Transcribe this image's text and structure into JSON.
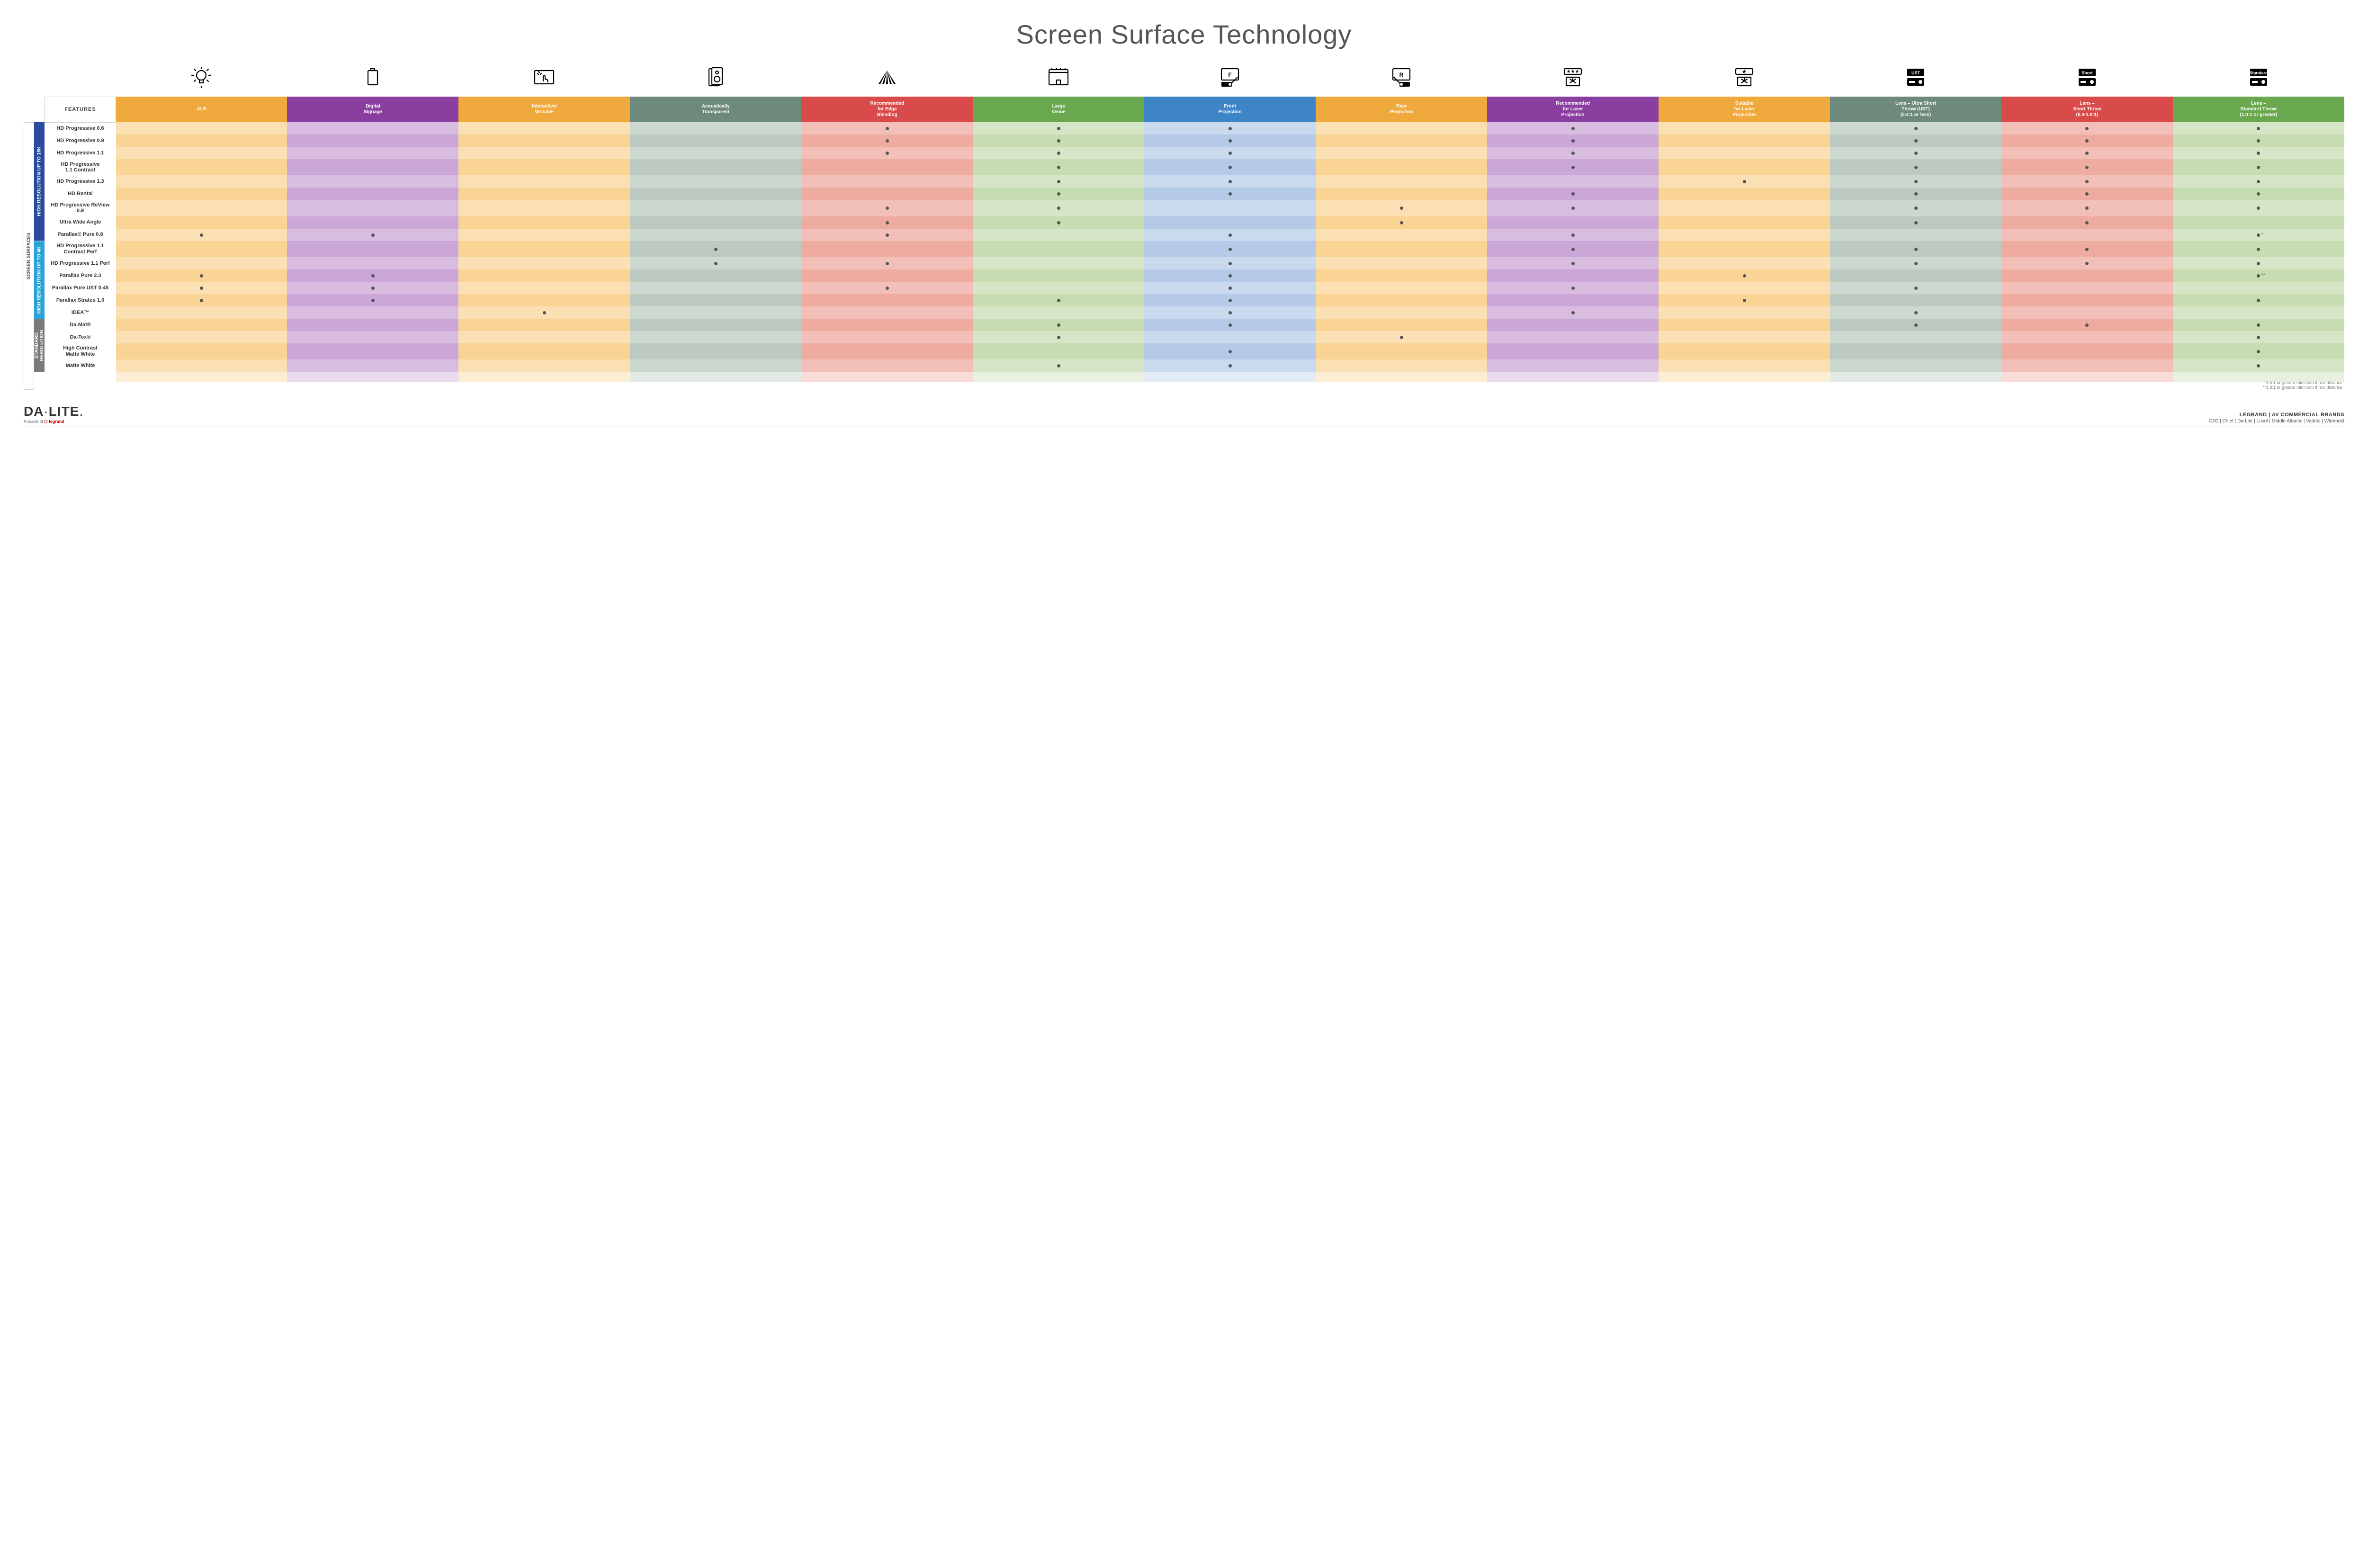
{
  "title": "Screen Surface Technology",
  "dot_color": "#555555",
  "colors": {
    "group_16k": "#2a4b9b",
    "group_4k": "#2aa3d8",
    "group_std": "#7a7a7a"
  },
  "columns": [
    {
      "key": "alr",
      "label": "ALR",
      "hdr": "#f0a93c",
      "shades": [
        "#fbe0b3",
        "#f9d494"
      ]
    },
    {
      "key": "signage",
      "label": "Digital\nSignage",
      "hdr": "#8a3fa0",
      "shades": [
        "#d8bde0",
        "#caa7d6"
      ]
    },
    {
      "key": "writable",
      "label": "Interactive/\nWritable",
      "hdr": "#f0a93c",
      "shades": [
        "#fbe0b3",
        "#f9d494"
      ]
    },
    {
      "key": "acoustic",
      "label": "Acoustically\nTransparent",
      "hdr": "#6e8a7d",
      "shades": [
        "#cdd8d1",
        "#bccac1"
      ]
    },
    {
      "key": "edge",
      "label": "Recommended\nfor Edge\nBlending",
      "hdr": "#d94b4b",
      "shades": [
        "#f2c0b8",
        "#eeab9f"
      ]
    },
    {
      "key": "venue",
      "label": "Large\nVenue",
      "hdr": "#6aa84f",
      "shades": [
        "#d6e5c6",
        "#c6dcb1"
      ]
    },
    {
      "key": "front",
      "label": "Front\nProjection",
      "hdr": "#3d85c6",
      "shades": [
        "#c9d9ee",
        "#b4cae7"
      ]
    },
    {
      "key": "rear",
      "label": "Rear\nProjection",
      "hdr": "#f0a93c",
      "shades": [
        "#fbe0b3",
        "#f9d494"
      ]
    },
    {
      "key": "recLaser",
      "label": "Recommended\nfor Laser\nProjection",
      "hdr": "#8a3fa0",
      "shades": [
        "#d8bde0",
        "#caa7d6"
      ]
    },
    {
      "key": "suitLaser",
      "label": "Suitable\nfor Laser\nProjection",
      "hdr": "#f0a93c",
      "shades": [
        "#fbe0b3",
        "#f9d494"
      ]
    },
    {
      "key": "ust",
      "label": "Lens – Ultra Short\nThrow (UST)\n(0.4:1 or less)",
      "hdr": "#6e8a7d",
      "shades": [
        "#cdd8d1",
        "#bccac1"
      ]
    },
    {
      "key": "short",
      "label": "Lens –\nShort Throw\n(0.4-1.0:1)",
      "hdr": "#d94b4b",
      "shades": [
        "#f2c0b8",
        "#eeab9f"
      ]
    },
    {
      "key": "std",
      "label": "Lens –\nStandard Throw\n(1.0:1 or greater)",
      "hdr": "#6aa84f",
      "shades": [
        "#d6e5c6",
        "#c6dcb1"
      ]
    }
  ],
  "icons": [
    "bulb",
    "signage",
    "touch",
    "speaker",
    "angle",
    "venue",
    "front",
    "rear",
    "laser-rec",
    "laser-suit",
    "proj-ust",
    "proj-short",
    "proj-std"
  ],
  "groups": [
    {
      "key": "g16k",
      "label": "HIGH RESOLUTION UP TO 16K",
      "color": "#2a4b9b"
    },
    {
      "key": "g4k",
      "label": "HIGH RESOLUTION UP TO 4K",
      "color": "#2aa3d8"
    },
    {
      "key": "gstd",
      "label": "STANDARD\nRESOLUTION",
      "color": "#7a7a7a"
    }
  ],
  "side_label": "SCREEN SURFACES",
  "features_label": "FEATURES",
  "rows": [
    {
      "g": "g16k",
      "name": "HD Progressive 0.6",
      "cells": {
        "edge": 1,
        "venue": 1,
        "front": 1,
        "recLaser": 1,
        "ust": 1,
        "short": 1,
        "std": 1
      }
    },
    {
      "g": "g16k",
      "name": "HD Progressive 0.9",
      "cells": {
        "edge": 1,
        "venue": 1,
        "front": 1,
        "recLaser": 1,
        "ust": 1,
        "short": 1,
        "std": 1
      }
    },
    {
      "g": "g16k",
      "name": "HD Progressive 1.1",
      "cells": {
        "edge": 1,
        "venue": 1,
        "front": 1,
        "recLaser": 1,
        "ust": 1,
        "short": 1,
        "std": 1
      }
    },
    {
      "g": "g16k",
      "name": "HD Progressive\n1.1 Contrast",
      "cells": {
        "venue": 1,
        "front": 1,
        "recLaser": 1,
        "ust": 1,
        "short": 1,
        "std": 1
      }
    },
    {
      "g": "g16k",
      "name": "HD Progressive 1.3",
      "cells": {
        "venue": 1,
        "front": 1,
        "suitLaser": 1,
        "ust": 1,
        "short": 1,
        "std": 1
      }
    },
    {
      "g": "g16k",
      "name": "HD Rental",
      "cells": {
        "venue": 1,
        "front": 1,
        "recLaser": 1,
        "ust": 1,
        "short": 1,
        "std": 1
      }
    },
    {
      "g": "g16k",
      "name": "HD Progressive ReView 0.9",
      "cells": {
        "edge": 1,
        "venue": 1,
        "rear": 1,
        "recLaser": 1,
        "ust": 1,
        "short": 1,
        "std": 1
      }
    },
    {
      "g": "g16k",
      "name": "Ultra Wide Angle",
      "cells": {
        "edge": 1,
        "venue": 1,
        "rear": 1,
        "ust": 1,
        "short": 1
      }
    },
    {
      "g": "g16k",
      "name": "Parallax® Pure 0.8",
      "cells": {
        "alr": 1,
        "signage": 1,
        "edge": 1,
        "front": 1,
        "recLaser": 1,
        "std": "*"
      }
    },
    {
      "g": "g4k",
      "name": "HD Progressive 1.1\nContrast Perf",
      "cells": {
        "acoustic": 1,
        "front": 1,
        "recLaser": 1,
        "ust": 1,
        "short": 1,
        "std": 1
      }
    },
    {
      "g": "g4k",
      "name": "HD Progressive 1.1 Perf",
      "cells": {
        "acoustic": 1,
        "edge": 1,
        "front": 1,
        "recLaser": 1,
        "ust": 1,
        "short": 1,
        "std": 1
      }
    },
    {
      "g": "g4k",
      "name": "Parallax Pure 2.3",
      "cells": {
        "alr": 1,
        "signage": 1,
        "front": 1,
        "suitLaser": 1,
        "std": "**"
      }
    },
    {
      "g": "g4k",
      "name": "Parallax Pure UST 0.45",
      "cells": {
        "alr": 1,
        "signage": 1,
        "edge": 1,
        "front": 1,
        "recLaser": 1,
        "ust": 1
      }
    },
    {
      "g": "g4k",
      "name": "Parallax Stratos 1.0",
      "cells": {
        "alr": 1,
        "signage": 1,
        "venue": 1,
        "front": 1,
        "suitLaser": 1,
        "std": 1
      }
    },
    {
      "g": "g4k",
      "name": "IDEA™",
      "cells": {
        "writable": 1,
        "front": 1,
        "recLaser": 1,
        "ust": 1
      }
    },
    {
      "g": "gstd",
      "name": "Da-Mat®",
      "cells": {
        "venue": 1,
        "front": 1,
        "ust": 1,
        "short": 1,
        "std": 1
      }
    },
    {
      "g": "gstd",
      "name": "Da-Tex®",
      "cells": {
        "venue": 1,
        "rear": 1,
        "std": 1
      }
    },
    {
      "g": "gstd",
      "name": "High Contrast\nMatte White",
      "cells": {
        "front": 1,
        "std": 1
      }
    },
    {
      "g": "gstd",
      "name": "Matte White",
      "cells": {
        "venue": 1,
        "front": 1,
        "std": 1
      }
    }
  ],
  "footnotes": [
    "*1.5:1 or greater minimum throw distance",
    "**1.8:1 or greater minimum throw distance"
  ],
  "footer": {
    "logo_main": "DA·LITE.",
    "logo_sub_prefix": "A brand of ",
    "logo_sub_brand": "legrand",
    "right1": "LEGRAND | AV COMMERCIAL BRANDS",
    "right2": "C2G  |  Chief  |  Da-Lite  |  Luxul  |  Middle Atlantic  |  Vaddio  |  Wiremold"
  }
}
